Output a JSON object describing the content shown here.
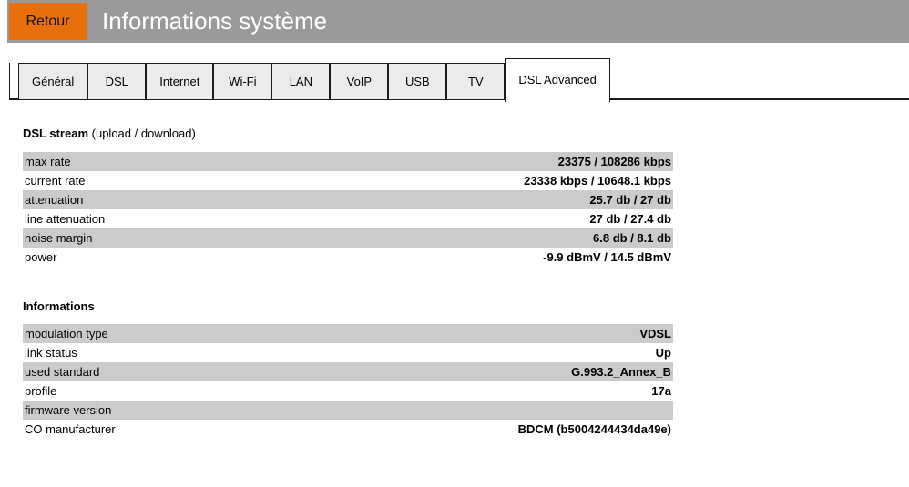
{
  "header": {
    "back_label": "Retour",
    "title": "Informations système"
  },
  "tabs": [
    {
      "label": "Général",
      "active": false
    },
    {
      "label": "DSL",
      "active": false
    },
    {
      "label": "Internet",
      "active": false
    },
    {
      "label": "Wi-Fi",
      "active": false
    },
    {
      "label": "LAN",
      "active": false
    },
    {
      "label": "VoIP",
      "active": false
    },
    {
      "label": "USB",
      "active": false
    },
    {
      "label": "TV",
      "active": false
    },
    {
      "label": "DSL Advanced",
      "active": true
    }
  ],
  "sections": [
    {
      "title": "DSL stream",
      "subtitle": "(upload / download)",
      "rows": [
        {
          "label": "max rate",
          "value": "23375 / 108286 kbps"
        },
        {
          "label": "current rate",
          "value": "23338 kbps / 10648.1 kbps"
        },
        {
          "label": "attenuation",
          "value": "25.7 db / 27 db"
        },
        {
          "label": "line attenuation",
          "value": "27 db / 27.4 db"
        },
        {
          "label": "noise margin",
          "value": "6.8 db / 8.1 db"
        },
        {
          "label": "power",
          "value": "-9.9 dBmV / 14.5 dBmV"
        }
      ]
    },
    {
      "title": "Informations",
      "subtitle": "",
      "rows": [
        {
          "label": "modulation type",
          "value": "VDSL"
        },
        {
          "label": "link status",
          "value": "Up"
        },
        {
          "label": "used standard",
          "value": "G.993.2_Annex_B"
        },
        {
          "label": "profile",
          "value": "17a"
        },
        {
          "label": "firmware version",
          "value": ""
        },
        {
          "label": "CO manufacturer",
          "value": "BDCM (b5004244434da49e)"
        }
      ]
    }
  ],
  "colors": {
    "accent_orange": "#e7700d",
    "header_gray": "#9a9a9a",
    "row_gray": "#cbcbcb"
  }
}
